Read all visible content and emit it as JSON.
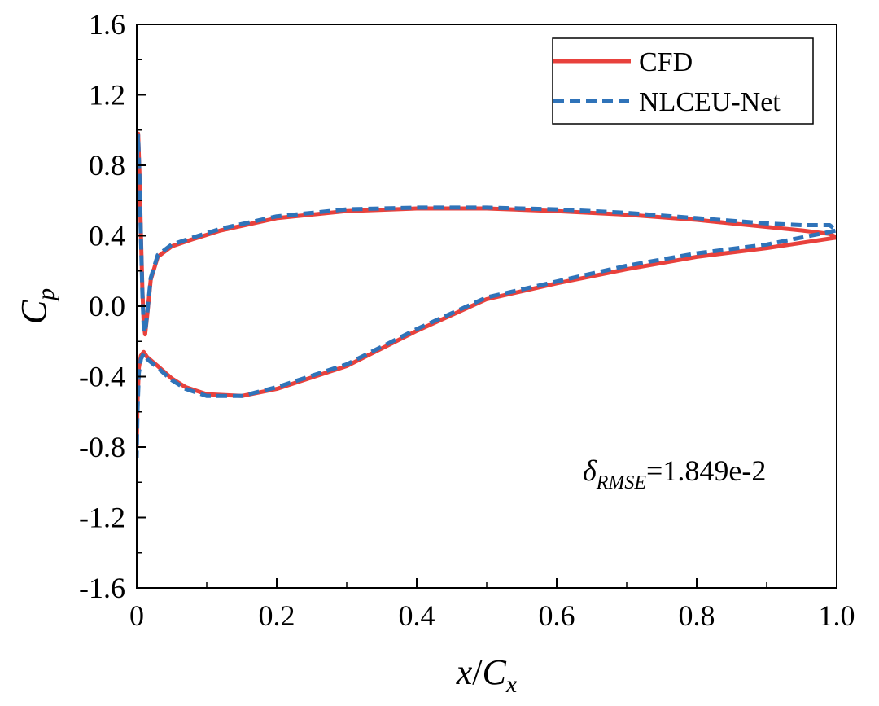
{
  "chart_data": {
    "type": "line",
    "xlabel": {
      "main": "x",
      "slash": "/",
      "sym": "C",
      "sub": "x"
    },
    "ylabel": {
      "sym": "C",
      "sub": "p"
    },
    "xlim": [
      0,
      1.0
    ],
    "ylim": [
      -1.6,
      1.6
    ],
    "xticks": [
      "0",
      "0.2",
      "0.4",
      "0.6",
      "0.8",
      "1.0"
    ],
    "yticks": [
      "1.6",
      "1.2",
      "0.8",
      "0.4",
      "0.0",
      "-0.4",
      "-0.8",
      "-1.2",
      "-1.6"
    ],
    "legend_position": "top-right",
    "annotation": {
      "sym": "δ",
      "sub": "RMSE",
      "value": "=1.849e-2"
    },
    "series": [
      {
        "name": "CFD",
        "style": "solid",
        "color": "#e8413c",
        "x": [
          0.0,
          0.002,
          0.004,
          0.006,
          0.008,
          0.01,
          0.012,
          0.015,
          0.02,
          0.03,
          0.05,
          0.08,
          0.12,
          0.2,
          0.3,
          0.4,
          0.5,
          0.6,
          0.7,
          0.8,
          0.9,
          0.95,
          0.99,
          1.0,
          0.95,
          0.9,
          0.8,
          0.7,
          0.6,
          0.5,
          0.4,
          0.3,
          0.2,
          0.15,
          0.1,
          0.07,
          0.05,
          0.03,
          0.015,
          0.01,
          0.006,
          0.003,
          0.001,
          0.0
        ],
        "y": [
          0.85,
          0.98,
          0.75,
          0.4,
          0.1,
          -0.1,
          -0.16,
          -0.05,
          0.15,
          0.28,
          0.34,
          0.38,
          0.43,
          0.5,
          0.54,
          0.555,
          0.555,
          0.54,
          0.52,
          0.49,
          0.45,
          0.43,
          0.41,
          0.39,
          0.36,
          0.33,
          0.28,
          0.21,
          0.13,
          0.04,
          -0.14,
          -0.34,
          -0.47,
          -0.51,
          -0.5,
          -0.46,
          -0.41,
          -0.34,
          -0.29,
          -0.26,
          -0.28,
          -0.35,
          -0.55,
          -0.8
        ]
      },
      {
        "name": "NLCEU-Net",
        "style": "dashed",
        "color": "#2f73b9",
        "x": [
          0.0,
          0.002,
          0.004,
          0.006,
          0.008,
          0.01,
          0.012,
          0.015,
          0.02,
          0.03,
          0.05,
          0.08,
          0.12,
          0.2,
          0.3,
          0.4,
          0.5,
          0.6,
          0.7,
          0.8,
          0.9,
          0.95,
          0.99,
          1.0,
          0.95,
          0.9,
          0.8,
          0.7,
          0.6,
          0.5,
          0.4,
          0.3,
          0.2,
          0.15,
          0.1,
          0.07,
          0.05,
          0.03,
          0.015,
          0.01,
          0.006,
          0.003,
          0.001,
          0.0
        ],
        "y": [
          0.82,
          0.97,
          0.73,
          0.38,
          0.08,
          -0.12,
          -0.15,
          -0.04,
          0.16,
          0.29,
          0.35,
          0.39,
          0.44,
          0.51,
          0.55,
          0.56,
          0.56,
          0.55,
          0.53,
          0.5,
          0.47,
          0.46,
          0.46,
          0.43,
          0.39,
          0.35,
          0.3,
          0.23,
          0.14,
          0.05,
          -0.13,
          -0.33,
          -0.46,
          -0.51,
          -0.51,
          -0.47,
          -0.42,
          -0.35,
          -0.3,
          -0.27,
          -0.3,
          -0.38,
          -0.6,
          -0.86
        ]
      }
    ]
  }
}
